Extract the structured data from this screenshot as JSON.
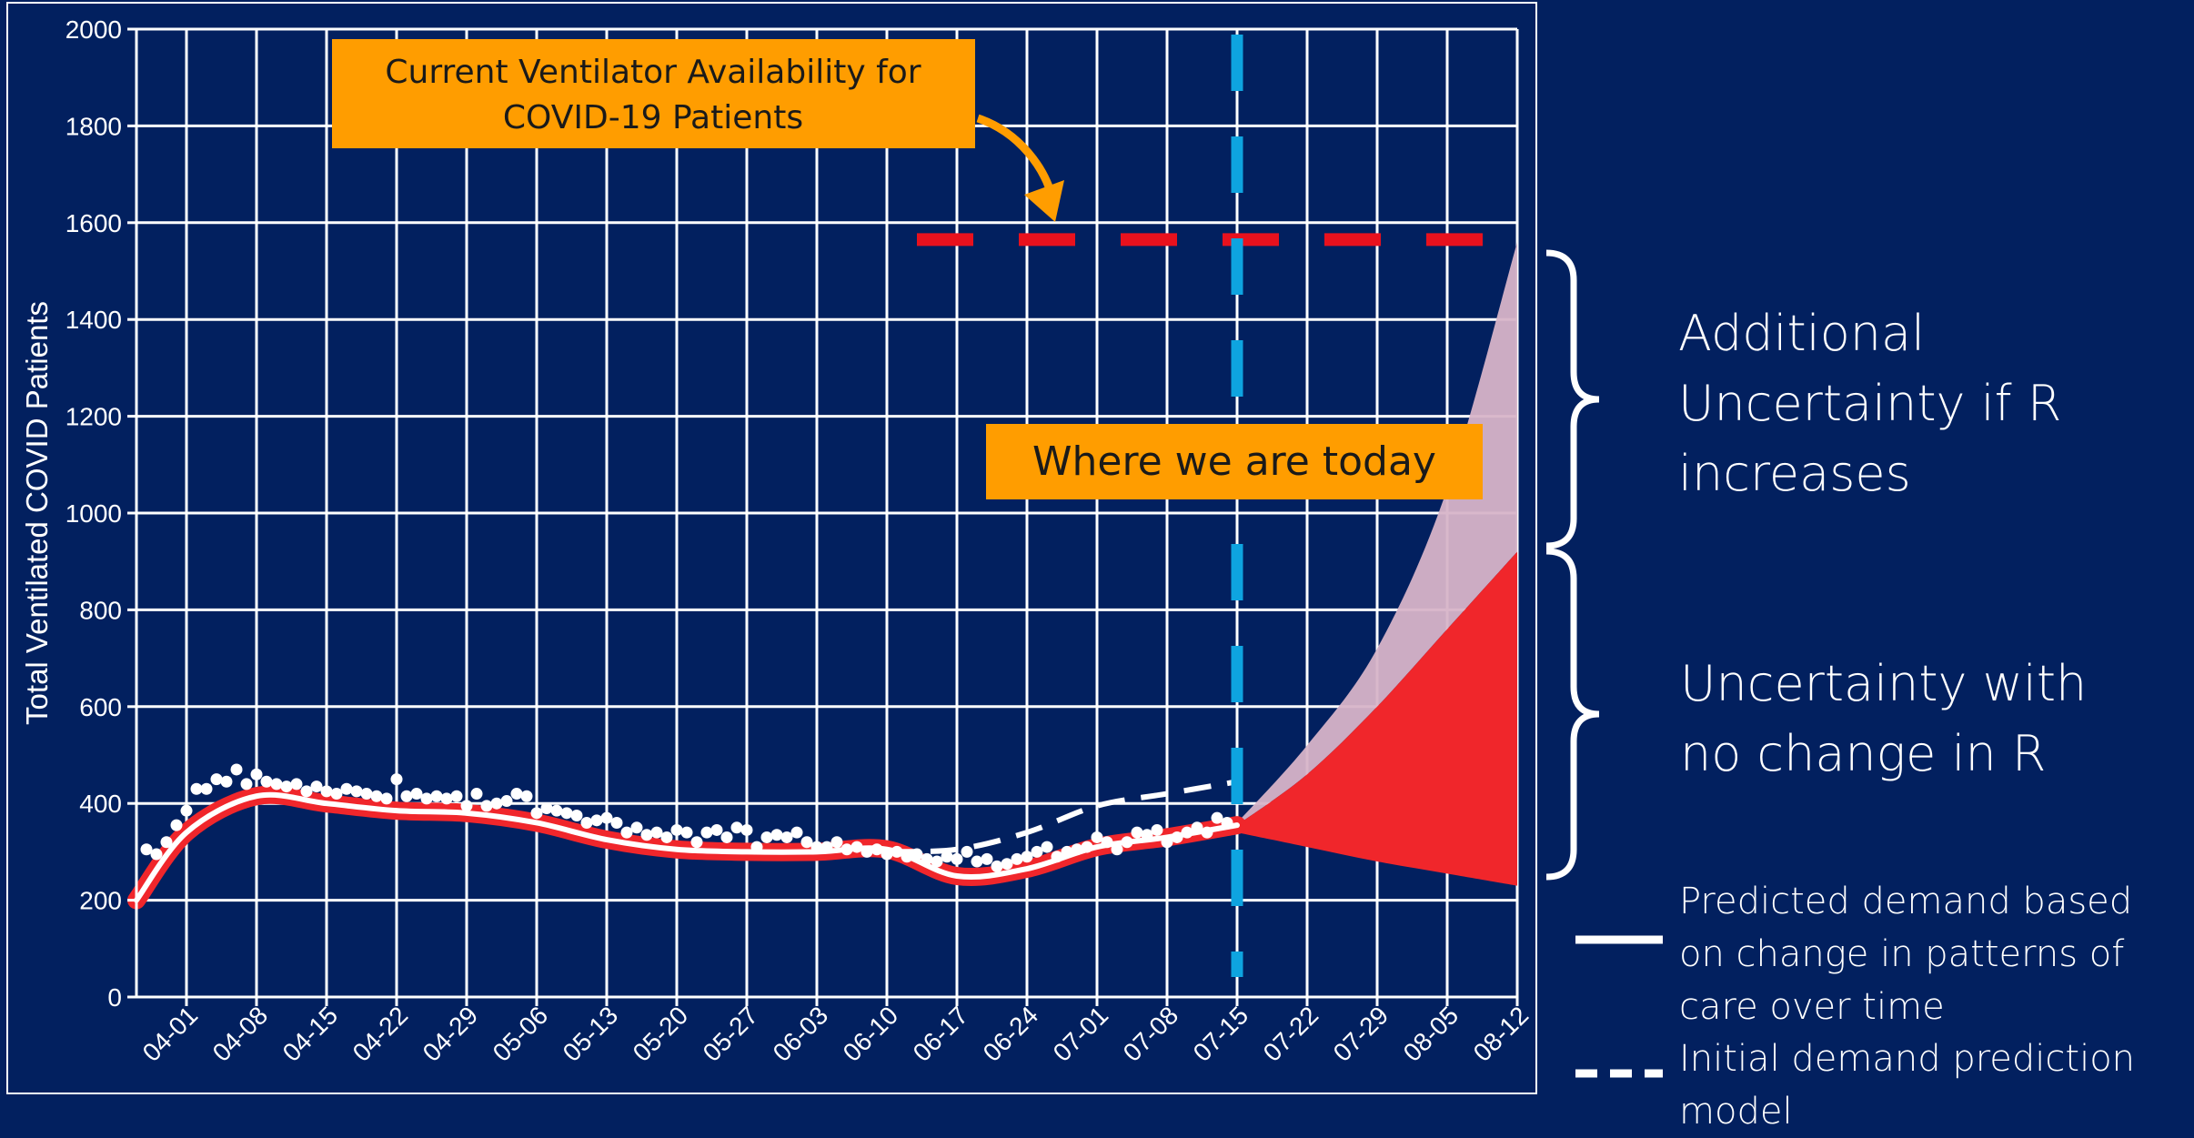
{
  "chart_data": {
    "type": "line",
    "ylabel": "Total Ventilated COVID Patients",
    "xlabel": "",
    "title": "",
    "ylim": [
      0,
      2000
    ],
    "yticks": [
      0,
      200,
      400,
      600,
      800,
      1000,
      1200,
      1400,
      1600,
      1800,
      2000
    ],
    "x_start": "03-27",
    "x_end": "08-12",
    "x_tick_labels": [
      "04-01",
      "04-08",
      "04-15",
      "04-22",
      "04-29",
      "05-06",
      "05-13",
      "05-20",
      "05-27",
      "06-03",
      "06-10",
      "06-17",
      "06-24",
      "07-01",
      "07-08",
      "07-15",
      "07-22",
      "07-29",
      "08-05",
      "08-12"
    ],
    "grid": true,
    "observed_points": [
      [
        "03-28",
        305
      ],
      [
        "03-29",
        295
      ],
      [
        "03-30",
        320
      ],
      [
        "03-31",
        355
      ],
      [
        "04-01",
        385
      ],
      [
        "04-02",
        430
      ],
      [
        "04-03",
        430
      ],
      [
        "04-04",
        450
      ],
      [
        "04-05",
        445
      ],
      [
        "04-06",
        470
      ],
      [
        "04-07",
        440
      ],
      [
        "04-08",
        460
      ],
      [
        "04-09",
        445
      ],
      [
        "04-10",
        440
      ],
      [
        "04-11",
        435
      ],
      [
        "04-12",
        440
      ],
      [
        "04-13",
        425
      ],
      [
        "04-14",
        435
      ],
      [
        "04-15",
        425
      ],
      [
        "04-16",
        420
      ],
      [
        "04-17",
        430
      ],
      [
        "04-18",
        425
      ],
      [
        "04-19",
        420
      ],
      [
        "04-20",
        415
      ],
      [
        "04-21",
        410
      ],
      [
        "04-22",
        450
      ],
      [
        "04-23",
        415
      ],
      [
        "04-24",
        420
      ],
      [
        "04-25",
        410
      ],
      [
        "04-26",
        415
      ],
      [
        "04-27",
        410
      ],
      [
        "04-28",
        415
      ],
      [
        "04-29",
        395
      ],
      [
        "04-30",
        420
      ],
      [
        "05-01",
        395
      ],
      [
        "05-02",
        400
      ],
      [
        "05-03",
        405
      ],
      [
        "05-04",
        420
      ],
      [
        "05-05",
        415
      ],
      [
        "05-06",
        380
      ],
      [
        "05-07",
        390
      ],
      [
        "05-08",
        385
      ],
      [
        "05-09",
        380
      ],
      [
        "05-10",
        375
      ],
      [
        "05-11",
        360
      ],
      [
        "05-12",
        365
      ],
      [
        "05-13",
        370
      ],
      [
        "05-14",
        360
      ],
      [
        "05-15",
        340
      ],
      [
        "05-16",
        350
      ],
      [
        "05-17",
        335
      ],
      [
        "05-18",
        340
      ],
      [
        "05-19",
        330
      ],
      [
        "05-20",
        345
      ],
      [
        "05-21",
        340
      ],
      [
        "05-22",
        320
      ],
      [
        "05-23",
        340
      ],
      [
        "05-24",
        345
      ],
      [
        "05-25",
        330
      ],
      [
        "05-26",
        350
      ],
      [
        "05-27",
        345
      ],
      [
        "05-28",
        310
      ],
      [
        "05-29",
        330
      ],
      [
        "05-30",
        335
      ],
      [
        "05-31",
        330
      ],
      [
        "06-01",
        340
      ],
      [
        "06-02",
        320
      ],
      [
        "06-03",
        310
      ],
      [
        "06-04",
        310
      ],
      [
        "06-05",
        320
      ],
      [
        "06-06",
        305
      ],
      [
        "06-07",
        310
      ],
      [
        "06-08",
        300
      ],
      [
        "06-09",
        305
      ],
      [
        "06-10",
        295
      ],
      [
        "06-11",
        300
      ],
      [
        "06-12",
        290
      ],
      [
        "06-13",
        295
      ],
      [
        "06-14",
        285
      ],
      [
        "06-15",
        280
      ],
      [
        "06-16",
        290
      ],
      [
        "06-17",
        285
      ],
      [
        "06-18",
        300
      ],
      [
        "06-19",
        280
      ],
      [
        "06-20",
        285
      ],
      [
        "06-21",
        270
      ],
      [
        "06-22",
        275
      ],
      [
        "06-23",
        285
      ],
      [
        "06-24",
        290
      ],
      [
        "06-25",
        300
      ],
      [
        "06-26",
        310
      ],
      [
        "06-27",
        290
      ],
      [
        "06-28",
        300
      ],
      [
        "06-29",
        305
      ],
      [
        "06-30",
        310
      ],
      [
        "07-01",
        330
      ],
      [
        "07-02",
        320
      ],
      [
        "07-03",
        305
      ],
      [
        "07-04",
        320
      ],
      [
        "07-05",
        340
      ],
      [
        "07-06",
        335
      ],
      [
        "07-07",
        345
      ],
      [
        "07-08",
        320
      ],
      [
        "07-09",
        330
      ],
      [
        "07-10",
        340
      ],
      [
        "07-11",
        350
      ],
      [
        "07-12",
        340
      ],
      [
        "07-13",
        370
      ],
      [
        "07-14",
        360
      ]
    ],
    "series": [
      {
        "name": "Predicted demand based on change in patterns of care over time",
        "style": "solid",
        "points": [
          [
            "03-27",
            200
          ],
          [
            "04-01",
            340
          ],
          [
            "04-08",
            415
          ],
          [
            "04-15",
            400
          ],
          [
            "04-22",
            385
          ],
          [
            "04-29",
            380
          ],
          [
            "05-06",
            360
          ],
          [
            "05-13",
            325
          ],
          [
            "05-20",
            305
          ],
          [
            "05-27",
            300
          ],
          [
            "06-03",
            300
          ],
          [
            "06-10",
            305
          ],
          [
            "06-17",
            250
          ],
          [
            "06-24",
            265
          ],
          [
            "07-01",
            310
          ],
          [
            "07-08",
            330
          ],
          [
            "07-15",
            355
          ]
        ]
      },
      {
        "name": "Initial demand prediction model",
        "style": "dashed",
        "points": [
          [
            "06-10",
            300
          ],
          [
            "06-17",
            305
          ],
          [
            "06-24",
            340
          ],
          [
            "07-01",
            395
          ],
          [
            "07-08",
            420
          ],
          [
            "07-15",
            445
          ]
        ]
      }
    ],
    "band_no_change": {
      "x": [
        "07-15",
        "07-22",
        "07-29",
        "08-05",
        "08-12"
      ],
      "lower": [
        340,
        310,
        280,
        255,
        230
      ],
      "upper": [
        355,
        460,
        600,
        760,
        920
      ]
    },
    "band_r_increase": {
      "x": [
        "07-15",
        "07-22",
        "07-29",
        "08-05",
        "08-12"
      ],
      "upper": [
        360,
        520,
        720,
        1050,
        1560
      ]
    },
    "availability_line": {
      "y": 1565,
      "from": "06-13",
      "to": "08-12",
      "color": "#e8111d"
    },
    "today_line": {
      "x": "07-15",
      "color": "#0ea4e0"
    },
    "annotations": [
      {
        "text": "Current Ventilator Availability for COVID-19 Patients",
        "color": "#ff9d00"
      },
      {
        "text": "Where we are today",
        "color": "#ff9d00"
      }
    ]
  },
  "colors": {
    "background": "#02205f",
    "grid": "#ffffff",
    "band_red": "#f0262b",
    "band_pink": "#d7b4c8",
    "orange": "#ff9d00",
    "blue": "#0ea4e0",
    "red_dash": "#e8111d"
  },
  "right_panel": {
    "uncertainty_r_increase": "Additional Uncertainty if R increases",
    "uncertainty_no_change": "Uncertainty with no change in R",
    "legend_predicted": "Predicted demand based on change in patterns of care over time",
    "legend_initial": "Initial demand prediction model"
  }
}
